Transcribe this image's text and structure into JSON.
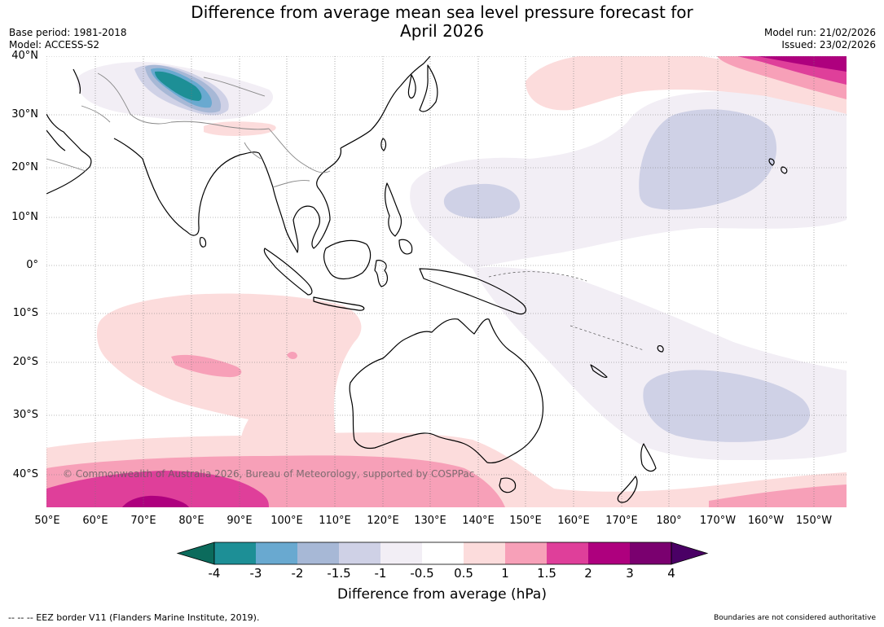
{
  "title": {
    "line1": "Difference from average mean sea level pressure forecast for",
    "line2": "April 2026"
  },
  "meta": {
    "base_period": "Base period: 1981-2018",
    "model": "Model: ACCESS-S2",
    "model_run": "Model run: 21/02/2026",
    "issued": "Issued: 23/02/2026"
  },
  "map": {
    "lat_labels": [
      "40°N",
      "30°N",
      "20°N",
      "10°N",
      "0°",
      "10°S",
      "20°S",
      "30°S",
      "40°S"
    ],
    "lon_labels": [
      "50°E",
      "60°E",
      "70°E",
      "80°E",
      "90°E",
      "100°E",
      "110°E",
      "120°E",
      "130°E",
      "140°E",
      "150°E",
      "160°E",
      "170°E",
      "180°",
      "170°W",
      "160°W",
      "150°W"
    ],
    "copyright": "© Commonwealth of Australia 2026, Bureau of Meteorology, supported by COSPPac"
  },
  "colorbar": {
    "ticks": [
      "-4",
      "-3",
      "-2",
      "-1.5",
      "-1",
      "-0.5",
      "0.5",
      "1",
      "1.5",
      "2",
      "3",
      "4"
    ],
    "colors": [
      "#0b6b5c",
      "#1d8f96",
      "#69a9d0",
      "#a7b8d6",
      "#cfd1e6",
      "#f2eef5",
      "#ffffff",
      "#fcdcdc",
      "#f7a0b8",
      "#df3f9a",
      "#ae007e",
      "#7a006f",
      "#4a0065"
    ],
    "label": "Difference from average (hPa)"
  },
  "footer": {
    "eez": "--  --  -- EEZ border V11 (Flanders Marine Institute, 2019).",
    "boundaries": "Boundaries are not considered authoritative"
  }
}
